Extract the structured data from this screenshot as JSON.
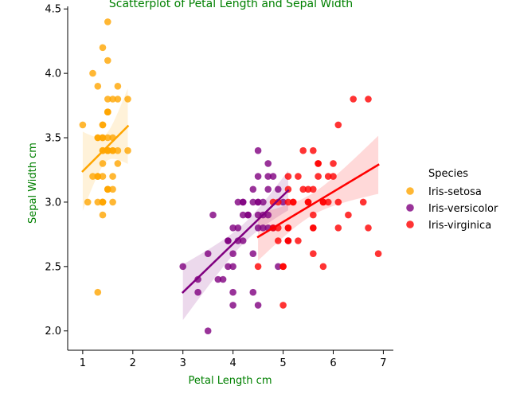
{
  "chart_data": {
    "type": "scatter",
    "title": "Scatterplot of Petal Length and Sepal Width",
    "xlabel": "Petal Length cm",
    "ylabel": "Sepal Width cm",
    "xlim": [
      0.7,
      7.2
    ],
    "ylim": [
      1.85,
      4.52
    ],
    "xticks": [
      1,
      2,
      3,
      4,
      5,
      6,
      7
    ],
    "yticks": [
      2.0,
      2.5,
      3.0,
      3.5,
      4.0,
      4.5
    ],
    "xtick_labels": [
      "1",
      "2",
      "3",
      "4",
      "5",
      "6",
      "7"
    ],
    "ytick_labels": [
      "2.0",
      "2.5",
      "3.0",
      "3.5",
      "4.0",
      "4.5"
    ],
    "grid": false,
    "legend": {
      "title": "Species",
      "placement": "right"
    },
    "series": [
      {
        "name": "Iris-setosa",
        "color": "#FFA500",
        "x": [
          1.4,
          1.4,
          1.3,
          1.5,
          1.4,
          1.7,
          1.4,
          1.5,
          1.4,
          1.5,
          1.5,
          1.6,
          1.4,
          1.1,
          1.2,
          1.5,
          1.3,
          1.4,
          1.7,
          1.5,
          1.7,
          1.5,
          1.0,
          1.7,
          1.9,
          1.6,
          1.6,
          1.5,
          1.4,
          1.6,
          1.6,
          1.5,
          1.5,
          1.4,
          1.5,
          1.2,
          1.3,
          1.4,
          1.3,
          1.5,
          1.3,
          1.3,
          1.3,
          1.6,
          1.9,
          1.4,
          1.6,
          1.4,
          1.5,
          1.4
        ],
        "y": [
          3.5,
          3.0,
          3.2,
          3.1,
          3.6,
          3.9,
          3.4,
          3.4,
          2.9,
          3.1,
          3.7,
          3.4,
          3.0,
          3.0,
          4.0,
          4.4,
          3.9,
          3.5,
          3.8,
          3.8,
          3.4,
          3.7,
          3.6,
          3.3,
          3.4,
          3.0,
          3.4,
          3.5,
          3.4,
          3.2,
          3.1,
          3.4,
          4.1,
          4.2,
          3.1,
          3.2,
          3.5,
          3.6,
          3.0,
          3.4,
          3.5,
          2.3,
          3.2,
          3.5,
          3.8,
          3.0,
          3.8,
          3.2,
          3.7,
          3.3
        ],
        "fit": {
          "x": [
            1.0,
            1.9
          ],
          "y": [
            3.24,
            3.59
          ]
        }
      },
      {
        "name": "Iris-versicolor",
        "color": "#800080",
        "x": [
          4.7,
          4.5,
          4.9,
          4.0,
          4.6,
          4.5,
          4.7,
          3.3,
          4.6,
          3.9,
          3.5,
          4.2,
          4.0,
          4.7,
          3.6,
          4.4,
          4.5,
          4.1,
          4.5,
          3.9,
          4.8,
          4.0,
          4.9,
          4.7,
          4.3,
          4.4,
          4.8,
          5.0,
          4.5,
          3.5,
          3.8,
          3.7,
          3.9,
          5.1,
          4.5,
          4.5,
          4.7,
          4.4,
          4.1,
          4.0,
          4.4,
          4.6,
          4.0,
          3.3,
          4.2,
          4.2,
          4.2,
          4.3,
          3.0,
          4.1
        ],
        "y": [
          3.2,
          3.2,
          3.1,
          2.3,
          2.8,
          2.8,
          3.3,
          2.4,
          2.9,
          2.7,
          2.0,
          3.0,
          2.2,
          2.9,
          2.9,
          3.1,
          3.0,
          2.7,
          2.2,
          2.5,
          3.2,
          2.8,
          2.5,
          2.8,
          2.9,
          3.0,
          2.8,
          3.0,
          2.9,
          2.6,
          2.4,
          2.4,
          2.7,
          2.7,
          3.0,
          3.4,
          3.1,
          2.3,
          3.0,
          2.5,
          2.6,
          3.0,
          2.6,
          2.3,
          2.7,
          3.0,
          2.9,
          2.9,
          2.5,
          2.8
        ],
        "fit": {
          "x": [
            3.0,
            5.1
          ],
          "y": [
            2.3,
            3.09
          ]
        }
      },
      {
        "name": "Iris-virginica",
        "color": "#FF0000",
        "x": [
          6.0,
          5.1,
          5.9,
          5.6,
          5.8,
          6.6,
          4.5,
          6.3,
          5.8,
          6.1,
          5.1,
          5.3,
          5.5,
          5.0,
          5.1,
          5.3,
          5.5,
          6.7,
          6.9,
          5.0,
          5.7,
          4.9,
          6.7,
          4.9,
          5.7,
          6.0,
          4.8,
          4.9,
          5.6,
          5.8,
          6.1,
          6.4,
          5.6,
          5.1,
          5.6,
          6.1,
          5.6,
          5.5,
          4.8,
          5.4,
          5.6,
          5.1,
          5.1,
          5.9,
          5.7,
          5.2,
          5.0,
          5.2,
          5.4,
          5.1
        ],
        "y": [
          3.3,
          2.7,
          3.0,
          2.9,
          3.0,
          3.0,
          2.5,
          2.9,
          2.5,
          3.6,
          3.2,
          2.7,
          3.0,
          2.5,
          2.8,
          3.2,
          3.0,
          3.8,
          2.6,
          2.2,
          3.2,
          2.8,
          2.8,
          2.7,
          3.3,
          3.2,
          2.8,
          3.0,
          2.8,
          3.0,
          2.8,
          3.8,
          2.8,
          2.8,
          2.6,
          3.0,
          3.4,
          3.1,
          3.0,
          3.1,
          3.1,
          3.1,
          2.7,
          3.2,
          3.3,
          3.0,
          2.5,
          3.0,
          3.4,
          3.0
        ],
        "fit": {
          "x": [
            4.5,
            6.9
          ],
          "y": [
            2.73,
            3.29
          ]
        }
      }
    ]
  }
}
